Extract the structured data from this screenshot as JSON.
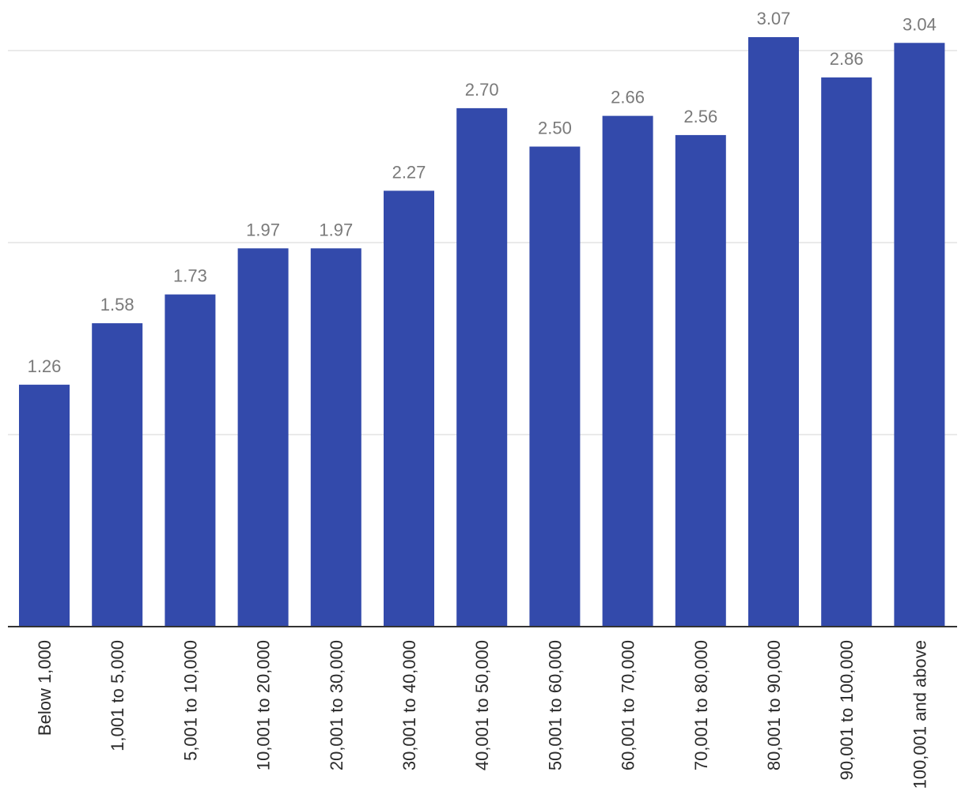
{
  "chart_data": {
    "type": "bar",
    "categories": [
      "Below 1,000",
      "1,001 to 5,000",
      "5,001 to 10,000",
      "10,001 to 20,000",
      "20,001 to 30,000",
      "30,001 to 40,000",
      "40,001 to 50,000",
      "50,001 to 60,000",
      "60,001 to 70,000",
      "70,001 to 80,000",
      "80,001 to 90,000",
      "90,001 to 100,000",
      "100,001 and above"
    ],
    "values": [
      1.26,
      1.58,
      1.73,
      1.97,
      1.97,
      2.27,
      2.7,
      2.5,
      2.66,
      2.56,
      3.07,
      2.86,
      3.04
    ],
    "value_labels": [
      "1.26",
      "1.58",
      "1.73",
      "1.97",
      "1.97",
      "2.27",
      "2.70",
      "2.50",
      "2.66",
      "2.56",
      "3.07",
      "2.86",
      "3.04"
    ],
    "ylim": [
      0,
      3.0
    ],
    "gridlines": [
      1,
      2,
      3
    ],
    "grid": true,
    "bar_color": "#334aab",
    "title": "",
    "xlabel": "",
    "ylabel": ""
  }
}
